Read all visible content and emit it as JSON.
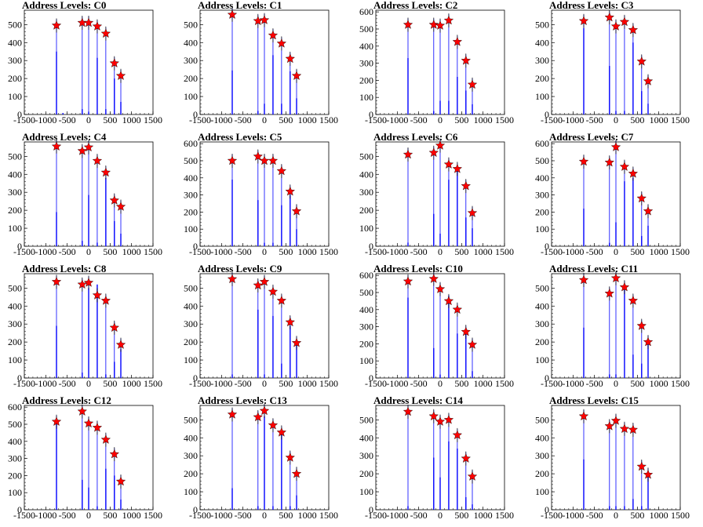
{
  "figure": {
    "panels": [
      {
        "title": "Address Levels: C0"
      },
      {
        "title": "Address Levels: C1"
      },
      {
        "title": "Address Levels: C2"
      },
      {
        "title": "Address Levels: C3"
      },
      {
        "title": "Address Levels: C4"
      },
      {
        "title": "Address Levels: C5"
      },
      {
        "title": "Address Levels: C6"
      },
      {
        "title": "Address Levels: C7"
      },
      {
        "title": "Address Levels: C8"
      },
      {
        "title": "Address Levels: C9"
      },
      {
        "title": "Address Levels: C10"
      },
      {
        "title": "Address Levels: C11"
      },
      {
        "title": "Address Levels: C12"
      },
      {
        "title": "Address Levels: C13"
      },
      {
        "title": "Address Levels: C14"
      },
      {
        "title": "Address Levels: C15"
      }
    ]
  },
  "colors": {
    "histogram": "#0000ff",
    "peak_marker": "#ff0000",
    "marker_outline": "#000000",
    "axis": "#000000"
  },
  "chart_data": [
    {
      "type": "bar",
      "title": "Address Levels: C0",
      "xlim": [
        -1500,
        1500
      ],
      "ylim": [
        0,
        580
      ],
      "yticks": [
        0,
        100,
        200,
        300,
        400,
        500
      ],
      "xticks": [
        -1500,
        -1000,
        -500,
        0,
        500,
        1000,
        1500
      ],
      "x": [
        -750,
        -600,
        -150,
        0,
        200,
        400,
        600,
        750
      ],
      "values": [
        350,
        8,
        30,
        15,
        315,
        30,
        200,
        70
      ],
      "peaks": {
        "x": [
          -750,
          -150,
          0,
          200,
          400,
          600,
          750
        ],
        "y": [
          495,
          510,
          510,
          490,
          450,
          285,
          215
        ]
      }
    },
    {
      "type": "bar",
      "title": "Address Levels: C1",
      "xlim": [
        -1500,
        1500
      ],
      "ylim": [
        0,
        580
      ],
      "yticks": [
        0,
        100,
        200,
        300,
        400,
        500
      ],
      "xticks": [
        -1500,
        -1000,
        -500,
        0,
        500,
        1000,
        1500
      ],
      "x": [
        -750,
        -150,
        0,
        200,
        400,
        600,
        750
      ],
      "values": [
        245,
        20,
        60,
        330,
        60,
        240,
        90
      ],
      "peaks": {
        "x": [
          -750,
          -150,
          0,
          200,
          400,
          600,
          750
        ],
        "y": [
          555,
          520,
          525,
          440,
          395,
          310,
          215
        ]
      }
    },
    {
      "type": "bar",
      "title": "Address Levels: C2",
      "xlim": [
        -1500,
        1500
      ],
      "ylim": [
        0,
        610
      ],
      "yticks": [
        0,
        100,
        200,
        300,
        400,
        500,
        600
      ],
      "xticks": [
        -1500,
        -1000,
        -500,
        0,
        500,
        1000,
        1500
      ],
      "x": [
        -750,
        -150,
        0,
        200,
        400,
        600,
        750
      ],
      "values": [
        330,
        20,
        80,
        80,
        220,
        140,
        60
      ],
      "peaks": {
        "x": [
          -750,
          -150,
          0,
          200,
          400,
          600,
          750
        ],
        "y": [
          525,
          525,
          520,
          550,
          425,
          315,
          175
        ]
      }
    },
    {
      "type": "bar",
      "title": "Address Levels: C3",
      "xlim": [
        -1500,
        1500
      ],
      "ylim": [
        0,
        580
      ],
      "yticks": [
        0,
        100,
        200,
        300,
        400,
        500
      ],
      "xticks": [
        -1500,
        -1000,
        -500,
        0,
        500,
        1000,
        1500
      ],
      "x": [
        -750,
        -150,
        0,
        200,
        400,
        600,
        750
      ],
      "values": [
        480,
        270,
        20,
        20,
        400,
        130,
        60
      ],
      "peaks": {
        "x": [
          -750,
          -150,
          0,
          200,
          400,
          600,
          750
        ],
        "y": [
          520,
          540,
          490,
          515,
          470,
          295,
          185
        ]
      }
    },
    {
      "type": "bar",
      "title": "Address Levels: C4",
      "xlim": [
        -1500,
        1500
      ],
      "ylim": [
        0,
        580
      ],
      "yticks": [
        0,
        100,
        200,
        300,
        400,
        500
      ],
      "xticks": [
        -1500,
        -1000,
        -500,
        0,
        500,
        1000,
        1500
      ],
      "x": [
        -750,
        -150,
        0,
        200,
        400,
        600,
        750
      ],
      "values": [
        190,
        30,
        285,
        20,
        380,
        140,
        70
      ],
      "peaks": {
        "x": [
          -750,
          -150,
          0,
          200,
          400,
          600,
          750
        ],
        "y": [
          555,
          530,
          550,
          475,
          410,
          255,
          220
        ]
      }
    },
    {
      "type": "bar",
      "title": "Address Levels: C5",
      "xlim": [
        -1500,
        1500
      ],
      "ylim": [
        0,
        610
      ],
      "yticks": [
        0,
        100,
        200,
        300,
        400,
        500,
        600
      ],
      "xticks": [
        -1500,
        -1000,
        -500,
        0,
        500,
        1000,
        1500
      ],
      "x": [
        -750,
        -150,
        0,
        200,
        400,
        600,
        750
      ],
      "values": [
        390,
        270,
        20,
        20,
        240,
        300,
        100
      ],
      "peaks": {
        "x": [
          -750,
          -150,
          0,
          200,
          400,
          600,
          750
        ],
        "y": [
          500,
          525,
          500,
          500,
          440,
          320,
          205
        ]
      }
    },
    {
      "type": "bar",
      "title": "Address Levels: C6",
      "xlim": [
        -1500,
        1500
      ],
      "ylim": [
        0,
        580
      ],
      "yticks": [
        0,
        100,
        200,
        300,
        400,
        500
      ],
      "xticks": [
        -1500,
        -1000,
        -500,
        0,
        500,
        1000,
        1500
      ],
      "x": [
        -750,
        -150,
        0,
        200,
        400,
        600,
        750
      ],
      "values": [
        20,
        180,
        70,
        370,
        430,
        160,
        100
      ],
      "peaks": {
        "x": [
          -750,
          -150,
          0,
          200,
          400,
          600,
          750
        ],
        "y": [
          510,
          520,
          560,
          455,
          430,
          335,
          185
        ]
      }
    },
    {
      "type": "bar",
      "title": "Address Levels: C7",
      "xlim": [
        -1500,
        1500
      ],
      "ylim": [
        0,
        610
      ],
      "yticks": [
        0,
        100,
        200,
        300,
        400,
        500,
        600
      ],
      "xticks": [
        -1500,
        -1000,
        -500,
        0,
        500,
        1000,
        1500
      ],
      "x": [
        -750,
        -150,
        0,
        200,
        400,
        600,
        750
      ],
      "values": [
        220,
        20,
        140,
        380,
        400,
        60,
        120
      ],
      "peaks": {
        "x": [
          -750,
          -150,
          0,
          200,
          400,
          600,
          750
        ],
        "y": [
          495,
          490,
          580,
          465,
          425,
          280,
          205
        ]
      }
    },
    {
      "type": "bar",
      "title": "Address Levels: C8",
      "xlim": [
        -1500,
        1500
      ],
      "ylim": [
        0,
        580
      ],
      "yticks": [
        0,
        100,
        200,
        300,
        400,
        500
      ],
      "xticks": [
        -1500,
        -1000,
        -500,
        0,
        500,
        1000,
        1500
      ],
      "x": [
        -750,
        -150,
        0,
        200,
        400,
        600,
        750
      ],
      "values": [
        290,
        30,
        500,
        520,
        20,
        90,
        160
      ],
      "peaks": {
        "x": [
          -750,
          -150,
          0,
          200,
          400,
          600,
          750
        ],
        "y": [
          535,
          520,
          530,
          460,
          430,
          280,
          185
        ]
      }
    },
    {
      "type": "bar",
      "title": "Address Levels: C9",
      "xlim": [
        -1500,
        1500
      ],
      "ylim": [
        0,
        580
      ],
      "yticks": [
        0,
        100,
        200,
        300,
        400,
        500
      ],
      "xticks": [
        -1500,
        -1000,
        -500,
        0,
        500,
        1000,
        1500
      ],
      "x": [
        -750,
        -150,
        0,
        200,
        400,
        600,
        750
      ],
      "values": [
        20,
        380,
        20,
        345,
        80,
        290,
        190
      ],
      "peaks": {
        "x": [
          -750,
          -150,
          0,
          200,
          400,
          600,
          750
        ],
        "y": [
          550,
          515,
          535,
          480,
          430,
          310,
          195
        ]
      }
    },
    {
      "type": "bar",
      "title": "Address Levels: C10",
      "xlim": [
        -1500,
        1500
      ],
      "ylim": [
        0,
        610
      ],
      "yticks": [
        0,
        100,
        200,
        300,
        400,
        500,
        600
      ],
      "xticks": [
        -1500,
        -1000,
        -500,
        0,
        500,
        1000,
        1500
      ],
      "x": [
        -750,
        -150,
        0,
        200,
        400,
        600,
        750
      ],
      "values": [
        470,
        175,
        20,
        480,
        260,
        270,
        40
      ],
      "peaks": {
        "x": [
          -750,
          -150,
          0,
          200,
          400,
          600,
          750
        ],
        "y": [
          565,
          580,
          520,
          450,
          400,
          270,
          195
        ]
      }
    },
    {
      "type": "bar",
      "title": "Address Levels: C11",
      "xlim": [
        -1500,
        1500
      ],
      "ylim": [
        0,
        580
      ],
      "yticks": [
        0,
        100,
        200,
        300,
        400,
        500
      ],
      "xticks": [
        -1500,
        -1000,
        -500,
        0,
        500,
        1000,
        1500
      ],
      "x": [
        -750,
        -150,
        0,
        200,
        400,
        600,
        750
      ],
      "values": [
        280,
        20,
        20,
        490,
        130,
        80,
        190
      ],
      "peaks": {
        "x": [
          -750,
          -150,
          0,
          200,
          400,
          600,
          750
        ],
        "y": [
          545,
          470,
          555,
          505,
          430,
          290,
          200
        ]
      }
    },
    {
      "type": "bar",
      "title": "Address Levels: C12",
      "xlim": [
        -1500,
        1500
      ],
      "ylim": [
        0,
        610
      ],
      "yticks": [
        0,
        100,
        200,
        300,
        400,
        500,
        600
      ],
      "xticks": [
        -1500,
        -1000,
        -500,
        0,
        500,
        1000,
        1500
      ],
      "x": [
        -750,
        -150,
        0,
        200,
        400,
        600,
        750
      ],
      "values": [
        520,
        175,
        130,
        20,
        240,
        200,
        60
      ],
      "peaks": {
        "x": [
          -750,
          -150,
          0,
          200,
          400,
          600,
          750
        ],
        "y": [
          515,
          575,
          505,
          480,
          410,
          325,
          165
        ]
      }
    },
    {
      "type": "bar",
      "title": "Address Levels: C13",
      "xlim": [
        -1500,
        1500
      ],
      "ylim": [
        0,
        580
      ],
      "yticks": [
        0,
        100,
        200,
        300,
        400,
        500
      ],
      "xticks": [
        -1500,
        -1000,
        -500,
        0,
        500,
        1000,
        1500
      ],
      "x": [
        -750,
        -150,
        0,
        200,
        400,
        600,
        750
      ],
      "values": [
        120,
        20,
        520,
        20,
        420,
        20,
        80
      ],
      "peaks": {
        "x": [
          -750,
          -150,
          0,
          200,
          400,
          600,
          750
        ],
        "y": [
          530,
          515,
          550,
          470,
          430,
          290,
          200
        ]
      }
    },
    {
      "type": "bar",
      "title": "Address Levels: C14",
      "xlim": [
        -1500,
        1500
      ],
      "ylim": [
        0,
        580
      ],
      "yticks": [
        0,
        100,
        200,
        300,
        400,
        500
      ],
      "xticks": [
        -1500,
        -1000,
        -500,
        0,
        500,
        1000,
        1500
      ],
      "x": [
        -750,
        -150,
        0,
        200,
        400,
        600,
        750
      ],
      "values": [
        20,
        290,
        180,
        380,
        340,
        70,
        30
      ],
      "peaks": {
        "x": [
          -750,
          -150,
          0,
          200,
          400,
          600,
          750
        ],
        "y": [
          545,
          520,
          490,
          500,
          415,
          285,
          185
        ]
      }
    },
    {
      "type": "bar",
      "title": "Address Levels: C15",
      "xlim": [
        -1500,
        1500
      ],
      "ylim": [
        0,
        580
      ],
      "yticks": [
        0,
        100,
        200,
        300,
        400,
        500
      ],
      "xticks": [
        -1500,
        -1000,
        -500,
        0,
        500,
        1000,
        1500
      ],
      "x": [
        -750,
        -150,
        0,
        200,
        400,
        600,
        750
      ],
      "values": [
        280,
        20,
        20,
        20,
        60,
        20,
        190
      ],
      "peaks": {
        "x": [
          -750,
          -150,
          0,
          200,
          400,
          600,
          750
        ],
        "y": [
          520,
          465,
          495,
          450,
          445,
          240,
          195
        ]
      }
    }
  ]
}
